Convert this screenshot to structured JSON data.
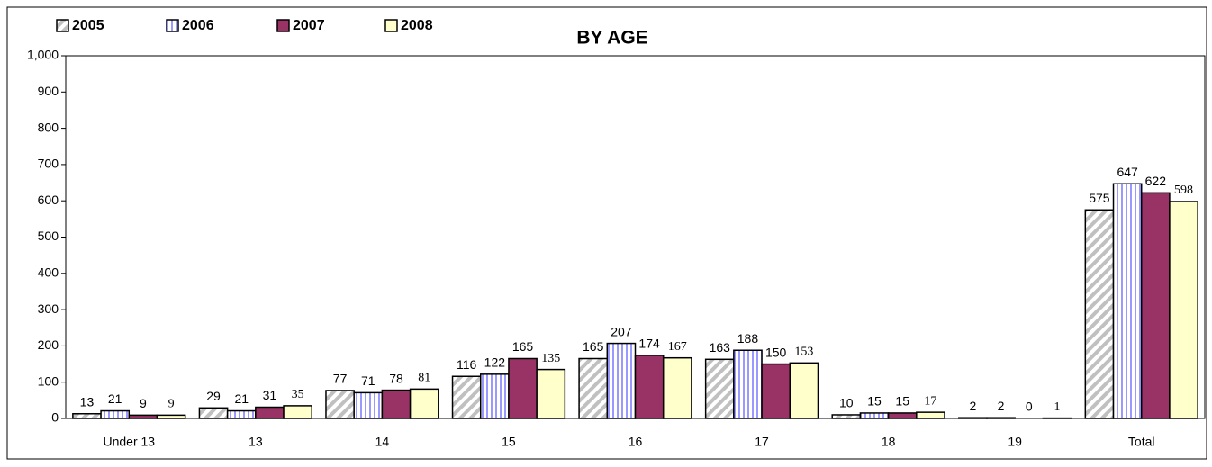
{
  "chart_data": {
    "type": "bar",
    "title": "BY AGE",
    "categories": [
      "Under 13",
      "13",
      "14",
      "15",
      "16",
      "17",
      "18",
      "19",
      "Total"
    ],
    "series": [
      {
        "name": "2005",
        "color": "#c0c0c0",
        "pattern": "diagonal",
        "values": [
          13,
          29,
          77,
          116,
          165,
          163,
          10,
          2,
          575
        ]
      },
      {
        "name": "2006",
        "color": "#9999ff",
        "pattern": "vertical",
        "values": [
          21,
          21,
          71,
          122,
          207,
          188,
          15,
          2,
          647
        ]
      },
      {
        "name": "2007",
        "color": "#993366",
        "values": [
          9,
          31,
          78,
          165,
          174,
          150,
          15,
          0,
          622
        ]
      },
      {
        "name": "2008",
        "color": "#ffffcc",
        "values": [
          9,
          35,
          81,
          135,
          167,
          153,
          17,
          1,
          598
        ]
      }
    ],
    "ylim": [
      0,
      1000
    ],
    "yticks": [
      0,
      100,
      200,
      300,
      400,
      500,
      600,
      700,
      800,
      900,
      {
        "value": 1000,
        "label": "1,000"
      }
    ],
    "legend": "top-left"
  }
}
